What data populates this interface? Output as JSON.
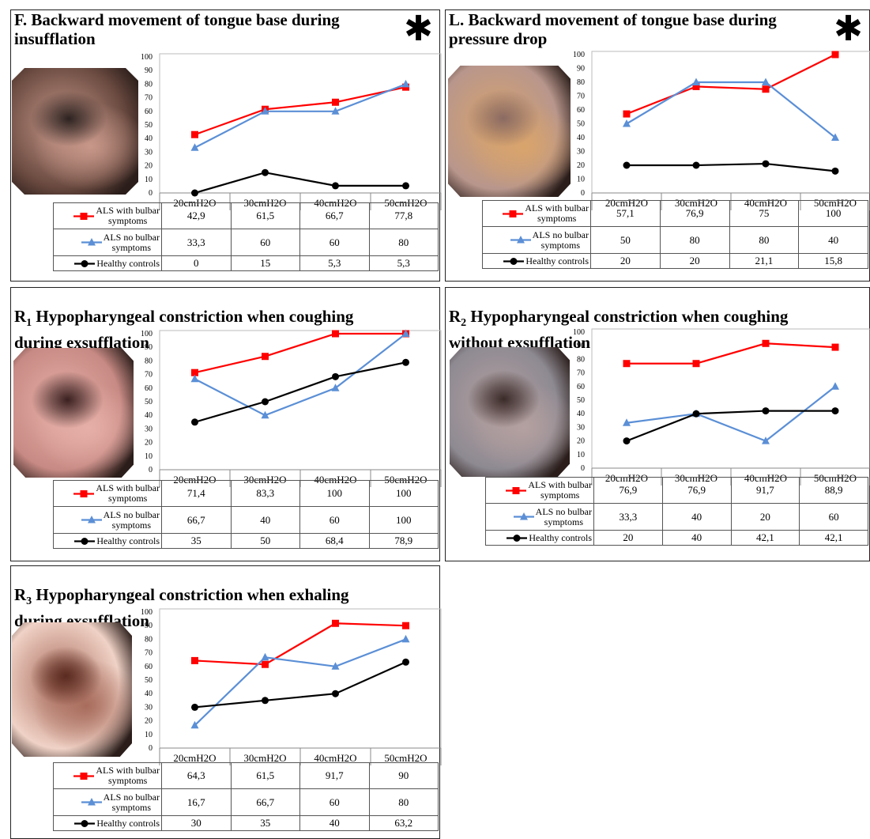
{
  "chart_data": [
    {
      "type": "line",
      "label": "F",
      "title": "F. Backward movement of tongue base during\ninsufflation",
      "star": "✱",
      "categories": [
        "20cmH2O",
        "30cmH2O",
        "40cmH2O",
        "50cmH2O"
      ],
      "ylim": [
        0,
        100
      ],
      "yticks": [
        0,
        10,
        20,
        30,
        40,
        50,
        60,
        70,
        80,
        90,
        100
      ],
      "series": [
        {
          "name": "ALS with bulbar symptoms",
          "values": [
            42.9,
            61.5,
            66.7,
            77.8
          ],
          "labels": [
            "42,9",
            "61,5",
            "66,7",
            "77,8"
          ],
          "color": "#ff0000",
          "marker": "square"
        },
        {
          "name": "ALS no bulbar symptoms",
          "values": [
            33.3,
            60,
            60,
            80
          ],
          "labels": [
            "33,3",
            "60",
            "60",
            "80"
          ],
          "color": "#5b8fd6",
          "marker": "triangle"
        },
        {
          "name": "Healthy controls",
          "values": [
            0,
            15,
            5.3,
            5.3
          ],
          "labels": [
            "0",
            "15",
            "5,3",
            "5,3"
          ],
          "color": "#000000",
          "marker": "circle"
        }
      ]
    },
    {
      "type": "line",
      "label": "L",
      "title": "L. Backward movement of tongue base during\npressure drop",
      "star": "✱",
      "categories": [
        "20cmH2O",
        "30cmH2O",
        "40cmH2O",
        "50cmH2O"
      ],
      "ylim": [
        0,
        100
      ],
      "yticks": [
        0,
        10,
        20,
        30,
        40,
        50,
        60,
        70,
        80,
        90,
        100
      ],
      "series": [
        {
          "name": "ALS with bulbar symptoms",
          "values": [
            57.1,
            76.9,
            75,
            100
          ],
          "labels": [
            "57,1",
            "76,9",
            "75",
            "100"
          ],
          "color": "#ff0000",
          "marker": "square"
        },
        {
          "name": "ALS no bulbar symptoms",
          "values": [
            50,
            80,
            80,
            40
          ],
          "labels": [
            "50",
            "80",
            "80",
            "40"
          ],
          "color": "#5b8fd6",
          "marker": "triangle"
        },
        {
          "name": "Healthy controls",
          "values": [
            20,
            20,
            21.1,
            15.8
          ],
          "labels": [
            "20",
            "20",
            "21,1",
            "15,8"
          ],
          "color": "#000000",
          "marker": "circle"
        }
      ]
    },
    {
      "type": "line",
      "label": "R1",
      "title_main": "R",
      "title_sub": "1",
      "title_rest": " Hypopharyngeal constriction when coughing\nduring exsufflation",
      "categories": [
        "20cmH2O",
        "30cmH2O",
        "40cmH2O",
        "50cmH2O"
      ],
      "ylim": [
        0,
        100
      ],
      "yticks": [
        0,
        10,
        20,
        30,
        40,
        50,
        60,
        70,
        80,
        90,
        100
      ],
      "series": [
        {
          "name": "ALS with bulbar symptoms",
          "values": [
            71.4,
            83.3,
            100,
            100
          ],
          "labels": [
            "71,4",
            "83,3",
            "100",
            "100"
          ],
          "color": "#ff0000",
          "marker": "square"
        },
        {
          "name": "ALS no bulbar symptoms",
          "values": [
            66.7,
            40,
            60,
            100
          ],
          "labels": [
            "66,7",
            "40",
            "60",
            "100"
          ],
          "color": "#5b8fd6",
          "marker": "triangle"
        },
        {
          "name": "Healthy controls",
          "values": [
            35,
            50,
            68.4,
            78.9
          ],
          "labels": [
            "35",
            "50",
            "68,4",
            "78,9"
          ],
          "color": "#000000",
          "marker": "circle"
        }
      ]
    },
    {
      "type": "line",
      "label": "R2",
      "title_main": "R",
      "title_sub": "2",
      "title_rest": " Hypopharyngeal constriction when coughing\nwithout exsufflation",
      "categories": [
        "20cmH2O",
        "30cmH2O",
        "40cmH2O",
        "50cmH2O"
      ],
      "ylim": [
        0,
        100
      ],
      "yticks": [
        0,
        10,
        20,
        30,
        40,
        50,
        60,
        70,
        80,
        90,
        100
      ],
      "series": [
        {
          "name": "ALS with bulbar symptoms",
          "values": [
            76.9,
            76.9,
            91.7,
            88.9
          ],
          "labels": [
            "76,9",
            "76,9",
            "91,7",
            "88,9"
          ],
          "color": "#ff0000",
          "marker": "square"
        },
        {
          "name": "ALS no bulbar symptoms",
          "values": [
            33.3,
            40,
            20,
            60
          ],
          "labels": [
            "33,3",
            "40",
            "20",
            "60"
          ],
          "color": "#5b8fd6",
          "marker": "triangle"
        },
        {
          "name": "Healthy controls",
          "values": [
            20,
            40,
            42.1,
            42.1
          ],
          "labels": [
            "20",
            "40",
            "42,1",
            "42,1"
          ],
          "color": "#000000",
          "marker": "circle"
        }
      ]
    },
    {
      "type": "line",
      "label": "R3",
      "title_main": "R",
      "title_sub": "3",
      "title_rest": " Hypopharyngeal constriction when exhaling\nduring exsufflation",
      "categories": [
        "20cmH2O",
        "30cmH2O",
        "40cmH2O",
        "50cmH2O"
      ],
      "ylim": [
        0,
        100
      ],
      "yticks": [
        0,
        10,
        20,
        30,
        40,
        50,
        60,
        70,
        80,
        90,
        100
      ],
      "series": [
        {
          "name": "ALS with bulbar symptoms",
          "values": [
            64.3,
            61.5,
            91.7,
            90
          ],
          "labels": [
            "64,3",
            "61,5",
            "91,7",
            "90"
          ],
          "color": "#ff0000",
          "marker": "square"
        },
        {
          "name": "ALS no bulbar symptoms",
          "values": [
            16.7,
            66.7,
            60,
            80
          ],
          "labels": [
            "16,7",
            "66,7",
            "60",
            "80"
          ],
          "color": "#5b8fd6",
          "marker": "triangle"
        },
        {
          "name": "Healthy controls",
          "values": [
            30,
            35,
            40,
            63.2
          ],
          "labels": [
            "30",
            "35",
            "40",
            "63,2"
          ],
          "color": "#000000",
          "marker": "circle"
        }
      ]
    }
  ],
  "legend_labels": {
    "bulbar": "ALS with bulbar\nsymptoms",
    "nobulbar": "ALS no bulbar\nsymptoms",
    "healthy": "Healthy controls"
  },
  "photos": [
    {
      "panel": "F",
      "icon": "endoscopy-photo",
      "colors": [
        "#6a4a40",
        "#c8988a",
        "#2c2220"
      ]
    },
    {
      "panel": "L",
      "icon": "endoscopy-photo",
      "colors": [
        "#b8968c",
        "#d9a46c",
        "#8a6a62"
      ]
    },
    {
      "panel": "R1",
      "icon": "endoscopy-photo",
      "colors": [
        "#c88a84",
        "#e6b0a8",
        "#3a2020"
      ]
    },
    {
      "panel": "R2",
      "icon": "endoscopy-photo",
      "colors": [
        "#8e8a92",
        "#b4a0a0",
        "#3a2a28"
      ]
    },
    {
      "panel": "R3",
      "icon": "endoscopy-photo",
      "colors": [
        "#f0d2c6",
        "#a86c5c",
        "#5a2a20"
      ]
    }
  ]
}
